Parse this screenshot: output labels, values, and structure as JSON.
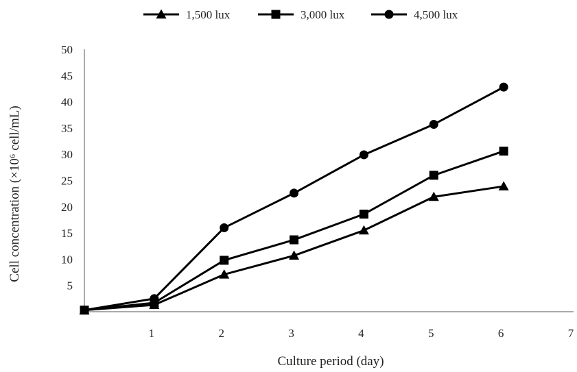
{
  "chart_data": {
    "type": "line",
    "title": "",
    "xlabel": "Culture period (day)",
    "ylabel": "Cell concentration (×10⁶ cell/mL)",
    "x": [
      0,
      1,
      2,
      3,
      4,
      5,
      6
    ],
    "x_ticks": [
      "1",
      "2",
      "3",
      "4",
      "5",
      "6",
      "7"
    ],
    "y_ticks": [
      "5",
      "10",
      "15",
      "20",
      "25",
      "30",
      "35",
      "40",
      "45",
      "50"
    ],
    "xlim": [
      0,
      7
    ],
    "ylim": [
      0,
      50
    ],
    "grid": false,
    "legend_position": "top",
    "series": [
      {
        "name": "1,500 lux",
        "marker": "triangle",
        "values": [
          0.3,
          1.3,
          7.1,
          10.7,
          15.5,
          21.9,
          23.9
        ]
      },
      {
        "name": "3,000 lux",
        "marker": "square",
        "values": [
          0.3,
          1.7,
          9.8,
          13.7,
          18.6,
          26.0,
          30.6
        ]
      },
      {
        "name": "4,500 lux",
        "marker": "circle",
        "values": [
          0.3,
          2.5,
          16.0,
          22.6,
          29.9,
          35.7,
          42.8
        ]
      }
    ],
    "colors": {
      "line": "#000000",
      "axis": "#555555"
    }
  }
}
